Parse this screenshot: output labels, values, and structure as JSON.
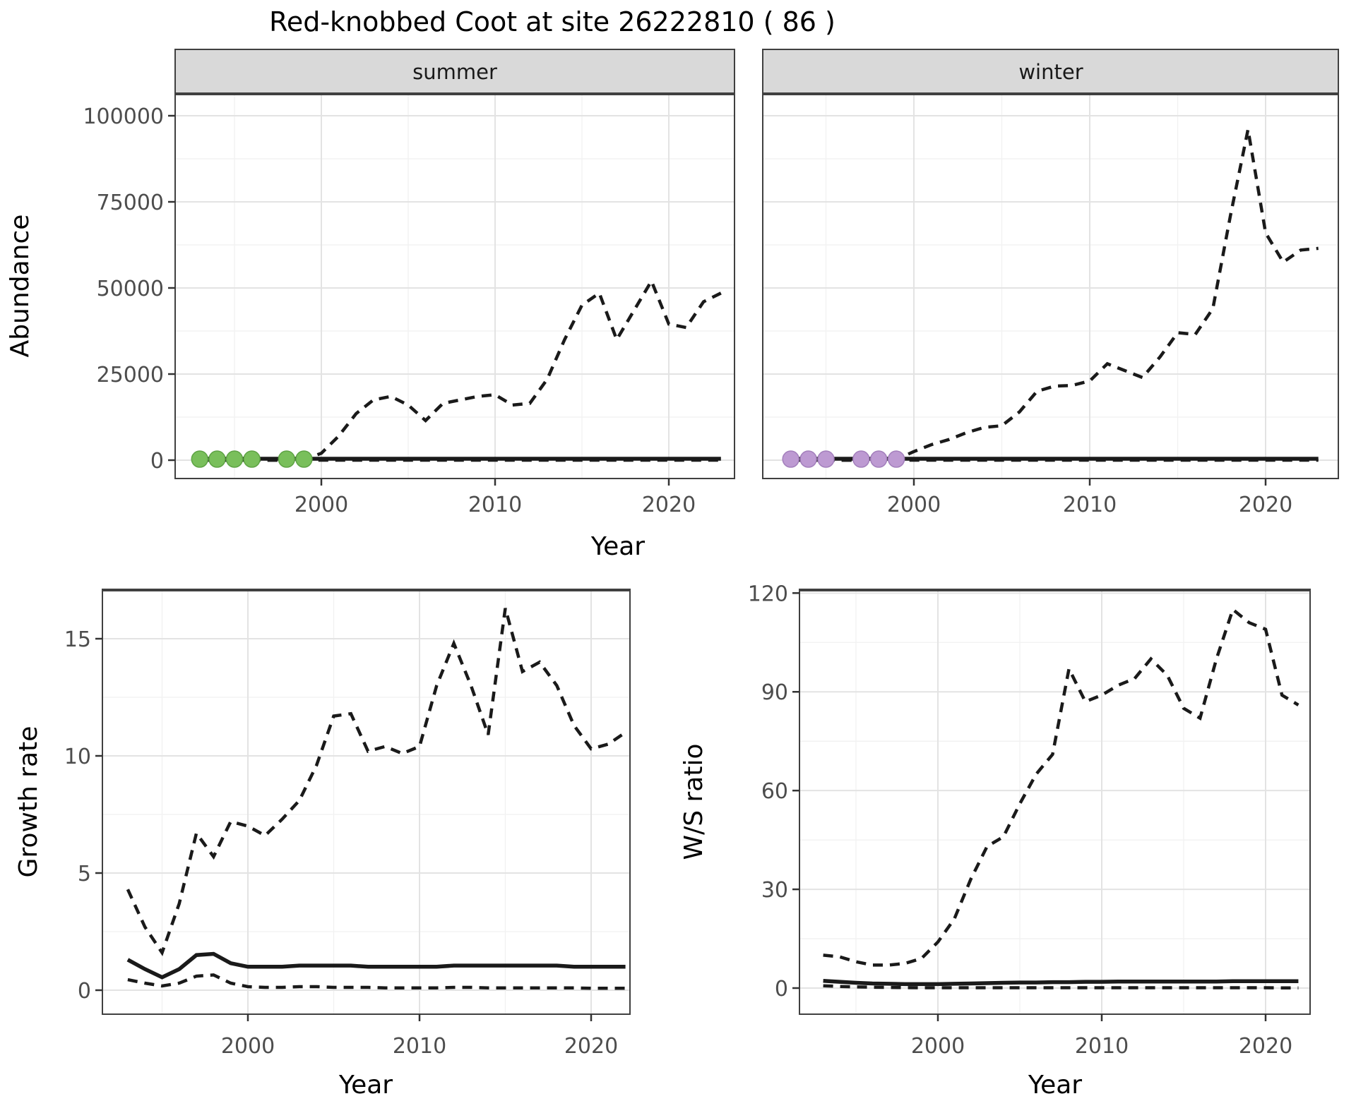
{
  "title": "Red-knobbed Coot at site 26222810 ( 86 )",
  "top_row": {
    "facets": [
      "summer",
      "winter"
    ],
    "ylabel": "Abundance",
    "xlabel": "Year",
    "ytick_values": [
      0,
      25000,
      50000,
      75000,
      100000
    ],
    "xticks": [
      2000,
      2010,
      2020
    ]
  },
  "bottom_row": {
    "left": {
      "ylabel": "Growth rate",
      "xlabel": "Year",
      "ytick_values": [
        0,
        5,
        10,
        15
      ],
      "xticks": [
        2000,
        2010,
        2020
      ]
    },
    "right": {
      "ylabel": "W/S ratio",
      "xlabel": "Year",
      "ytick_values": [
        0,
        30,
        60,
        90,
        120
      ],
      "xticks": [
        2000,
        2010,
        2020
      ]
    }
  },
  "colors": {
    "line": "#1a1a1a",
    "summer_dot": "#79bf5b",
    "summer_dot_edge": "#5ea344",
    "winter_dot": "#bd9ad2",
    "winter_dot_edge": "#a37fbc",
    "strip_fill": "#d9d9d9",
    "panel_border": "#404040",
    "grid_major": "#e3e3e3",
    "grid_minor": "#f1f1f1",
    "tick_text": "#4d4d4d"
  },
  "chart_data": [
    {
      "type": "line",
      "facet": "summer",
      "title": "Abundance - summer",
      "xlabel": "Year",
      "ylabel": "Abundance",
      "ylim": [
        0,
        100000
      ],
      "grid": true,
      "years": [
        1993,
        1994,
        1995,
        1996,
        1997,
        1998,
        1999,
        2000,
        2001,
        2002,
        2003,
        2004,
        2005,
        2006,
        2007,
        2008,
        2009,
        2010,
        2011,
        2012,
        2013,
        2014,
        2015,
        2016,
        2017,
        2018,
        2019,
        2020,
        2021,
        2022,
        2023
      ],
      "series": [
        {
          "name": "upper_95ci",
          "style": "dashed",
          "values": [
            0,
            0,
            0,
            0,
            0,
            0,
            100,
            2000,
            7000,
            13500,
            17500,
            18500,
            16000,
            11500,
            16500,
            17500,
            18500,
            19000,
            16000,
            16500,
            23500,
            35000,
            45000,
            48500,
            35000,
            43500,
            52000,
            39500,
            38500,
            46000,
            48500
          ]
        },
        {
          "name": "estimate",
          "style": "solid",
          "values": [
            400,
            400,
            400,
            400,
            400,
            400,
            400,
            400,
            400,
            400,
            400,
            400,
            400,
            400,
            400,
            400,
            400,
            400,
            400,
            400,
            400,
            400,
            400,
            400,
            400,
            400,
            400,
            400,
            400,
            400,
            400
          ]
        },
        {
          "name": "lower_95ci",
          "style": "dashed",
          "values": [
            0,
            0,
            0,
            0,
            0,
            0,
            0,
            0,
            0,
            0,
            0,
            0,
            0,
            0,
            0,
            0,
            0,
            0,
            0,
            0,
            0,
            0,
            0,
            0,
            0,
            0,
            0,
            0,
            0,
            0,
            0
          ]
        }
      ],
      "observed_points": {
        "name": "observed-counts-summer",
        "color_key": "summer_dot",
        "edge_key": "summer_dot_edge",
        "years": [
          1993,
          1994,
          1995,
          1996,
          1998,
          1999
        ],
        "values": [
          300,
          300,
          300,
          300,
          300,
          300
        ]
      }
    },
    {
      "type": "line",
      "facet": "winter",
      "title": "Abundance - winter",
      "xlabel": "Year",
      "ylabel": "Abundance",
      "ylim": [
        0,
        100000
      ],
      "grid": true,
      "years": [
        1993,
        1994,
        1995,
        1996,
        1997,
        1998,
        1999,
        2000,
        2001,
        2002,
        2003,
        2004,
        2005,
        2006,
        2007,
        2008,
        2009,
        2010,
        2011,
        2012,
        2013,
        2014,
        2015,
        2016,
        2017,
        2018,
        2019,
        2020,
        2021,
        2022,
        2023
      ],
      "series": [
        {
          "name": "upper_95ci",
          "style": "dashed",
          "values": [
            0,
            0,
            0,
            0,
            0,
            0,
            200,
            2500,
            4500,
            6000,
            8000,
            9500,
            10000,
            14000,
            20000,
            21500,
            21700,
            23000,
            28000,
            26000,
            24000,
            30000,
            37000,
            36500,
            44000,
            71000,
            96000,
            66000,
            57500,
            61000,
            61500
          ]
        },
        {
          "name": "estimate",
          "style": "solid",
          "values": [
            400,
            400,
            400,
            400,
            400,
            400,
            400,
            400,
            400,
            400,
            400,
            400,
            400,
            400,
            400,
            400,
            400,
            400,
            400,
            400,
            400,
            400,
            400,
            400,
            400,
            400,
            400,
            400,
            400,
            400,
            400
          ]
        },
        {
          "name": "lower_95ci",
          "style": "dashed",
          "values": [
            0,
            0,
            0,
            0,
            0,
            0,
            0,
            0,
            0,
            0,
            0,
            0,
            0,
            0,
            0,
            0,
            0,
            0,
            0,
            0,
            0,
            0,
            0,
            0,
            0,
            0,
            0,
            0,
            0,
            0,
            0
          ]
        }
      ],
      "observed_points": {
        "name": "observed-counts-winter",
        "color_key": "winter_dot",
        "edge_key": "winter_dot_edge",
        "years": [
          1993,
          1994,
          1995,
          1997,
          1998,
          1999
        ],
        "values": [
          300,
          300,
          300,
          300,
          300,
          300
        ]
      }
    },
    {
      "type": "line",
      "plot": "growth_rate",
      "title": "Growth rate",
      "xlabel": "Year",
      "ylabel": "Growth rate",
      "ylim": [
        0,
        17
      ],
      "grid": true,
      "years": [
        1993,
        1994,
        1995,
        1996,
        1997,
        1998,
        1999,
        2000,
        2001,
        2002,
        2003,
        2004,
        2005,
        2006,
        2007,
        2008,
        2009,
        2010,
        2011,
        2012,
        2013,
        2014,
        2015,
        2016,
        2017,
        2018,
        2019,
        2020,
        2021,
        2022
      ],
      "series": [
        {
          "name": "upper_95ci",
          "style": "dashed",
          "values": [
            4.3,
            2.7,
            1.6,
            3.7,
            6.7,
            5.7,
            7.2,
            7.0,
            6.6,
            7.3,
            8.1,
            9.6,
            11.7,
            11.8,
            10.2,
            10.4,
            10.1,
            10.4,
            13.0,
            14.8,
            13.0,
            10.9,
            16.3,
            13.6,
            14.0,
            13.0,
            11.3,
            10.3,
            10.5,
            11.0
          ]
        },
        {
          "name": "estimate",
          "style": "solid",
          "values": [
            1.3,
            0.9,
            0.55,
            0.9,
            1.5,
            1.55,
            1.15,
            1.0,
            1.0,
            1.0,
            1.05,
            1.05,
            1.05,
            1.05,
            1.0,
            1.0,
            1.0,
            1.0,
            1.0,
            1.05,
            1.05,
            1.05,
            1.05,
            1.05,
            1.05,
            1.05,
            1.0,
            1.0,
            1.0,
            1.0
          ]
        },
        {
          "name": "lower_95ci",
          "style": "dashed",
          "values": [
            0.45,
            0.3,
            0.18,
            0.3,
            0.6,
            0.65,
            0.3,
            0.15,
            0.12,
            0.12,
            0.15,
            0.15,
            0.12,
            0.12,
            0.12,
            0.1,
            0.1,
            0.1,
            0.1,
            0.12,
            0.12,
            0.1,
            0.1,
            0.1,
            0.1,
            0.1,
            0.1,
            0.08,
            0.08,
            0.08
          ]
        }
      ]
    },
    {
      "type": "line",
      "plot": "ws_ratio",
      "title": "W/S ratio",
      "xlabel": "Year",
      "ylabel": "W/S ratio",
      "ylim": [
        0,
        121
      ],
      "grid": true,
      "years": [
        1993,
        1994,
        1995,
        1996,
        1997,
        1998,
        1999,
        2000,
        2001,
        2002,
        2003,
        2004,
        2005,
        2006,
        2007,
        2008,
        2009,
        2010,
        2011,
        2012,
        2013,
        2014,
        2015,
        2016,
        2017,
        2018,
        2019,
        2020,
        2021,
        2022
      ],
      "series": [
        {
          "name": "upper_95ci",
          "style": "dashed",
          "values": [
            10,
            9.5,
            8,
            7,
            7,
            7.5,
            9,
            14,
            21,
            33,
            43,
            46,
            56,
            65,
            71,
            97,
            87,
            89,
            92,
            94,
            100,
            95,
            85,
            82,
            100,
            115,
            111,
            109,
            89,
            86
          ]
        },
        {
          "name": "estimate",
          "style": "solid",
          "values": [
            2.2,
            1.9,
            1.6,
            1.4,
            1.3,
            1.2,
            1.2,
            1.2,
            1.3,
            1.4,
            1.5,
            1.6,
            1.7,
            1.7,
            1.8,
            1.8,
            1.9,
            1.9,
            2.0,
            2.0,
            2.0,
            2.0,
            2.0,
            2.0,
            2.0,
            2.1,
            2.1,
            2.1,
            2.1,
            2.1
          ]
        },
        {
          "name": "lower_95ci",
          "style": "dashed",
          "values": [
            0.7,
            0.5,
            0.35,
            0.25,
            0.2,
            0.15,
            0.1,
            0.1,
            0.1,
            0.1,
            0.1,
            0.1,
            0.1,
            0.1,
            0.1,
            0.1,
            0.1,
            0.1,
            0.1,
            0.1,
            0.1,
            0.1,
            0.1,
            0.1,
            0.1,
            0.1,
            0.1,
            0.1,
            0.05,
            0.05
          ]
        }
      ]
    }
  ]
}
